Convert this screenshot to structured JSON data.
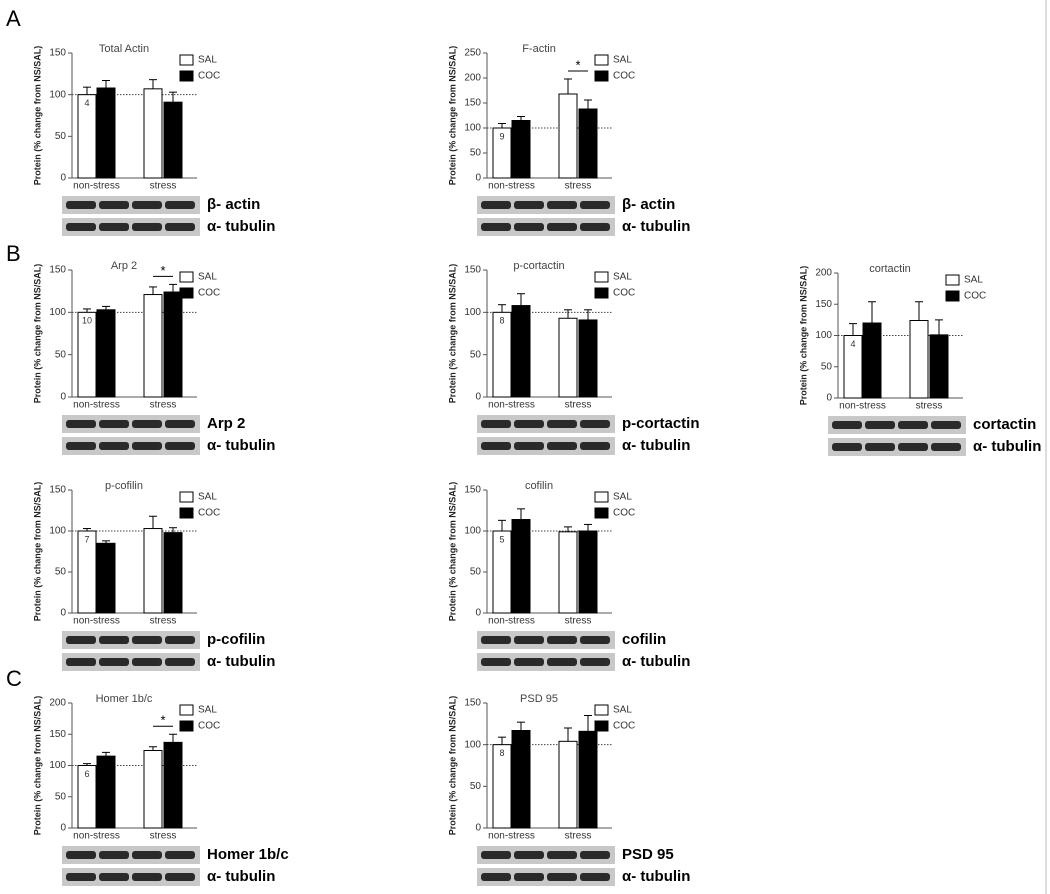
{
  "chart_data": [
    {
      "type": "bar",
      "panel": "A",
      "title": "Total Actin",
      "ylabel": "Protein (% change from NS/SAL)",
      "categories": [
        "non-stress",
        "stress"
      ],
      "series": [
        {
          "name": "SAL",
          "color": "#ffffff",
          "values": [
            100,
            107
          ],
          "errors": [
            9,
            11
          ]
        },
        {
          "name": "COC",
          "color": "#000000",
          "values": [
            108,
            91
          ],
          "errors": [
            9,
            12
          ]
        }
      ],
      "ylim": [
        0,
        150
      ],
      "yticks": [
        0,
        50,
        100,
        150
      ],
      "reference_line": 100,
      "n_label": "4",
      "blots": [
        "β- actin",
        "α- tubulin"
      ]
    },
    {
      "type": "bar",
      "title": "F-actin",
      "ylabel": "Protein (% change from NS/SAL)",
      "categories": [
        "non-stress",
        "stress"
      ],
      "series": [
        {
          "name": "SAL",
          "color": "#ffffff",
          "values": [
            100,
            168
          ],
          "errors": [
            9,
            30
          ]
        },
        {
          "name": "COC",
          "color": "#000000",
          "values": [
            115,
            138
          ],
          "errors": [
            8,
            18
          ]
        }
      ],
      "ylim": [
        0,
        250
      ],
      "yticks": [
        0,
        50,
        100,
        150,
        200,
        250
      ],
      "reference_line": 100,
      "n_label": "9",
      "significance": "*",
      "blots": [
        "β- actin",
        "α- tubulin"
      ]
    },
    {
      "type": "bar",
      "panel": "B",
      "title": "Arp 2",
      "ylabel": "Protein (% change from NS/SAL)",
      "categories": [
        "non-stress",
        "stress"
      ],
      "series": [
        {
          "name": "SAL",
          "color": "#ffffff",
          "values": [
            100,
            121
          ],
          "errors": [
            4,
            9
          ]
        },
        {
          "name": "COC",
          "color": "#000000",
          "values": [
            103,
            124
          ],
          "errors": [
            4,
            9
          ]
        }
      ],
      "ylim": [
        0,
        150
      ],
      "yticks": [
        0,
        50,
        100,
        150
      ],
      "reference_line": 100,
      "n_label": "10",
      "significance": "*",
      "blots": [
        "Arp 2",
        "α- tubulin"
      ]
    },
    {
      "type": "bar",
      "title": "p-cortactin",
      "ylabel": "Protein (% change from NS/SAL)",
      "categories": [
        "non-stress",
        "stress"
      ],
      "series": [
        {
          "name": "SAL",
          "color": "#ffffff",
          "values": [
            100,
            93
          ],
          "errors": [
            9,
            10
          ]
        },
        {
          "name": "COC",
          "color": "#000000",
          "values": [
            108,
            91
          ],
          "errors": [
            14,
            12
          ]
        }
      ],
      "ylim": [
        0,
        150
      ],
      "yticks": [
        0,
        50,
        100,
        150
      ],
      "reference_line": 100,
      "n_label": "8",
      "blots": [
        "p-cortactin",
        "α- tubulin"
      ]
    },
    {
      "type": "bar",
      "title": "cortactin",
      "ylabel": "Protein (% change from NS/SAL)",
      "categories": [
        "non-stress",
        "stress"
      ],
      "series": [
        {
          "name": "SAL",
          "color": "#ffffff",
          "values": [
            100,
            124
          ],
          "errors": [
            19,
            30
          ]
        },
        {
          "name": "COC",
          "color": "#000000",
          "values": [
            120,
            101
          ],
          "errors": [
            34,
            24
          ]
        }
      ],
      "ylim": [
        0,
        200
      ],
      "yticks": [
        0,
        50,
        100,
        150,
        200
      ],
      "reference_line": 100,
      "n_label": "4",
      "blots": [
        "cortactin",
        "α- tubulin"
      ]
    },
    {
      "type": "bar",
      "title": "p-cofilin",
      "ylabel": "Protein (% change from NS/SAL)",
      "categories": [
        "non-stress",
        "stress"
      ],
      "series": [
        {
          "name": "SAL",
          "color": "#ffffff",
          "values": [
            100,
            103
          ],
          "errors": [
            3,
            15
          ]
        },
        {
          "name": "COC",
          "color": "#000000",
          "values": [
            85,
            98
          ],
          "errors": [
            3,
            6
          ]
        }
      ],
      "ylim": [
        0,
        150
      ],
      "yticks": [
        0,
        50,
        100,
        150
      ],
      "reference_line": 100,
      "n_label": "7",
      "blots": [
        "p-cofilin",
        "α- tubulin"
      ]
    },
    {
      "type": "bar",
      "title": "cofilin",
      "ylabel": "Protein (% change from NS/SAL)",
      "categories": [
        "non-stress",
        "stress"
      ],
      "series": [
        {
          "name": "SAL",
          "color": "#ffffff",
          "values": [
            100,
            99
          ],
          "errors": [
            13,
            6
          ]
        },
        {
          "name": "COC",
          "color": "#000000",
          "values": [
            114,
            100
          ],
          "errors": [
            13,
            8
          ]
        }
      ],
      "ylim": [
        0,
        150
      ],
      "yticks": [
        0,
        50,
        100,
        150
      ],
      "reference_line": 100,
      "n_label": "5",
      "blots": [
        "cofilin",
        "α- tubulin"
      ]
    },
    {
      "type": "bar",
      "panel": "C",
      "title": "Homer 1b/c",
      "ylabel": "Protein (% change from NS/SAL)",
      "categories": [
        "non-stress",
        "stress"
      ],
      "series": [
        {
          "name": "SAL",
          "color": "#ffffff",
          "values": [
            100,
            124
          ],
          "errors": [
            3,
            6
          ]
        },
        {
          "name": "COC",
          "color": "#000000",
          "values": [
            115,
            137
          ],
          "errors": [
            6,
            13
          ]
        }
      ],
      "ylim": [
        0,
        200
      ],
      "yticks": [
        0,
        50,
        100,
        150,
        200
      ],
      "reference_line": 100,
      "n_label": "6",
      "significance": "*",
      "blots": [
        "Homer 1b/c",
        "α- tubulin"
      ]
    },
    {
      "type": "bar",
      "title": "PSD 95",
      "ylabel": "Protein (% change from NS/SAL)",
      "categories": [
        "non-stress",
        "stress"
      ],
      "series": [
        {
          "name": "SAL",
          "color": "#ffffff",
          "values": [
            100,
            104
          ],
          "errors": [
            9,
            16
          ]
        },
        {
          "name": "COC",
          "color": "#000000",
          "values": [
            117,
            116
          ],
          "errors": [
            10,
            19
          ]
        }
      ],
      "ylim": [
        0,
        150
      ],
      "yticks": [
        0,
        50,
        100,
        150
      ],
      "reference_line": 100,
      "n_label": "8",
      "blots": [
        "PSD 95",
        "α- tubulin"
      ]
    }
  ]
}
